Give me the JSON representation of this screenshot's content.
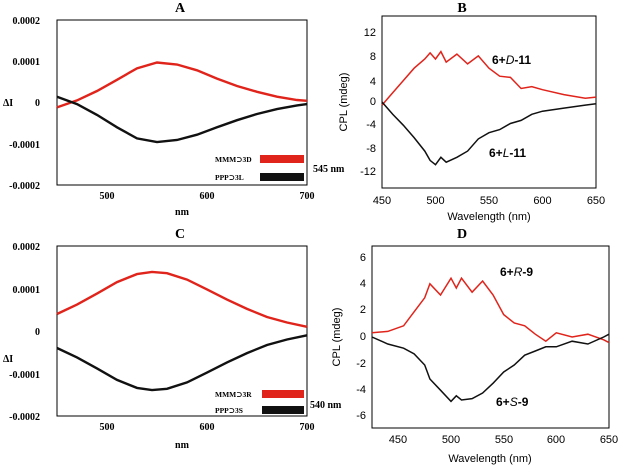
{
  "chart_data": [
    {
      "id": "A",
      "type": "line",
      "title": "A",
      "xlabel": "nm",
      "ylabel": "ΔI",
      "xlim": [
        450,
        700
      ],
      "ylim": [
        -0.0002,
        0.0002
      ],
      "xticks": [
        "500",
        "600",
        "700"
      ],
      "yticks": [
        "0.0002",
        "0.0001",
        "0",
        "-0.0001",
        "-0.0002"
      ],
      "annotation": "545 nm",
      "series": [
        {
          "name": "MMM⊃3D",
          "color": "#e0241b",
          "x": [
            450,
            470,
            490,
            510,
            530,
            550,
            570,
            590,
            610,
            630,
            650,
            670,
            690,
            700
          ],
          "y": [
            -1.2e-05,
            5e-06,
            2.8e-05,
            5.5e-05,
            8.3e-05,
            9.7e-05,
            9.2e-05,
            7.8e-05,
            5.8e-05,
            4e-05,
            2.6e-05,
            1.4e-05,
            6e-06,
            4e-06
          ]
        },
        {
          "name": "PPP⊃3L",
          "color": "#111111",
          "x": [
            450,
            470,
            490,
            510,
            530,
            550,
            570,
            590,
            610,
            630,
            650,
            670,
            690,
            700
          ],
          "y": [
            1.4e-05,
            -4e-06,
            -3e-05,
            -6e-05,
            -8.7e-05,
            -9.6e-05,
            -9.1e-05,
            -7.8e-05,
            -6e-05,
            -4.3e-05,
            -2.8e-05,
            -1.6e-05,
            -7e-06,
            -4e-06
          ]
        }
      ]
    },
    {
      "id": "B",
      "type": "line",
      "title": "B",
      "xlabel": "Wavelength (nm)",
      "ylabel": "CPL (mdeg)",
      "xlim": [
        450,
        650
      ],
      "ylim": [
        -14,
        14
      ],
      "xticks": [
        "450",
        "500",
        "550",
        "600",
        "650"
      ],
      "yticks": [
        "12",
        "8",
        "4",
        "0",
        "-4",
        "-8",
        "-12"
      ],
      "series": [
        {
          "name": "6+D-11",
          "label_prefix": "6+",
          "label_italic": "D",
          "label_suffix": "-11",
          "color": "#e0241b",
          "x": [
            450,
            460,
            470,
            480,
            490,
            495,
            500,
            505,
            510,
            520,
            530,
            540,
            550,
            560,
            570,
            580,
            590,
            600,
            620,
            640,
            650
          ],
          "y": [
            -0.5,
            1.5,
            3.5,
            5.5,
            7.0,
            8.0,
            7.0,
            8.2,
            6.5,
            7.8,
            6.2,
            7.5,
            5.5,
            4.2,
            4.0,
            2.2,
            2.5,
            2.0,
            1.2,
            0.6,
            0.8
          ]
        },
        {
          "name": "6+L-11",
          "label_prefix": "6+",
          "label_italic": "L",
          "label_suffix": "-11",
          "color": "#111111",
          "x": [
            450,
            460,
            470,
            480,
            490,
            495,
            500,
            505,
            510,
            520,
            530,
            540,
            550,
            560,
            570,
            580,
            590,
            600,
            620,
            640,
            650
          ],
          "y": [
            0.0,
            -2.0,
            -3.8,
            -5.8,
            -8.0,
            -9.5,
            -10.2,
            -9.0,
            -9.8,
            -9.0,
            -8.0,
            -6.0,
            -5.0,
            -4.5,
            -3.5,
            -3.0,
            -2.0,
            -1.5,
            -1.0,
            -0.5,
            -0.3
          ]
        }
      ]
    },
    {
      "id": "C",
      "type": "line",
      "title": "C",
      "xlabel": "nm",
      "ylabel": "ΔI",
      "xlim": [
        450,
        700
      ],
      "ylim": [
        -0.0002,
        0.0002
      ],
      "xticks": [
        "500",
        "600",
        "700"
      ],
      "yticks": [
        "0.0002",
        "0.0001",
        "0",
        "-0.0001",
        "-0.0002"
      ],
      "annotation": "540 nm",
      "series": [
        {
          "name": "MMM⊃3R",
          "color": "#e0241b",
          "x": [
            450,
            470,
            490,
            510,
            530,
            545,
            560,
            580,
            600,
            620,
            640,
            660,
            680,
            700
          ],
          "y": [
            4e-05,
            6.2e-05,
            8.8e-05,
            0.000115,
            0.000134,
            0.000139,
            0.000136,
            0.000121,
            9.8e-05,
            7.4e-05,
            5.2e-05,
            3.3e-05,
            2e-05,
            1e-05
          ]
        },
        {
          "name": "PPP⊃3S",
          "color": "#111111",
          "x": [
            450,
            470,
            490,
            510,
            530,
            545,
            560,
            580,
            600,
            620,
            640,
            660,
            680,
            700
          ],
          "y": [
            -4e-05,
            -6.2e-05,
            -8.8e-05,
            -0.000115,
            -0.000134,
            -0.000139,
            -0.000136,
            -0.000121,
            -9.8e-05,
            -7.4e-05,
            -5.2e-05,
            -3.3e-05,
            -2e-05,
            -1e-05
          ]
        }
      ]
    },
    {
      "id": "D",
      "type": "line",
      "title": "D",
      "xlabel": "Wavelength (nm)",
      "ylabel": "CPL (mdeg)",
      "xlim": [
        425,
        650
      ],
      "ylim": [
        -6.5,
        6.5
      ],
      "xticks": [
        "450",
        "500",
        "550",
        "600",
        "650"
      ],
      "yticks": [
        "6",
        "4",
        "2",
        "0",
        "-2",
        "-4",
        "-6"
      ],
      "series": [
        {
          "name": "6+R-9",
          "label_prefix": "6+",
          "label_italic": "R",
          "label_suffix": "-9",
          "color": "#e0241b",
          "x": [
            425,
            440,
            455,
            465,
            475,
            480,
            490,
            500,
            505,
            510,
            520,
            530,
            540,
            550,
            560,
            570,
            580,
            590,
            600,
            615,
            630,
            645,
            650
          ],
          "y": [
            0.3,
            0.4,
            0.8,
            1.8,
            2.8,
            3.8,
            3.0,
            4.2,
            3.5,
            4.2,
            3.2,
            4.0,
            3.0,
            1.6,
            1.0,
            0.8,
            0.2,
            -0.3,
            0.3,
            0.0,
            0.2,
            -0.2,
            -0.4
          ]
        },
        {
          "name": "6+S-9",
          "label_prefix": "6+",
          "label_italic": "S",
          "label_suffix": "-9",
          "color": "#111111",
          "x": [
            425,
            440,
            455,
            465,
            475,
            480,
            490,
            500,
            505,
            510,
            520,
            530,
            540,
            550,
            560,
            570,
            580,
            590,
            600,
            615,
            630,
            645,
            650
          ],
          "y": [
            0.0,
            -0.5,
            -0.8,
            -1.2,
            -2.0,
            -3.0,
            -3.8,
            -4.6,
            -4.2,
            -4.5,
            -4.4,
            -4.0,
            -3.3,
            -2.5,
            -2.0,
            -1.3,
            -1.0,
            -0.7,
            -0.7,
            -0.3,
            -0.5,
            0.0,
            0.2
          ]
        }
      ]
    }
  ]
}
